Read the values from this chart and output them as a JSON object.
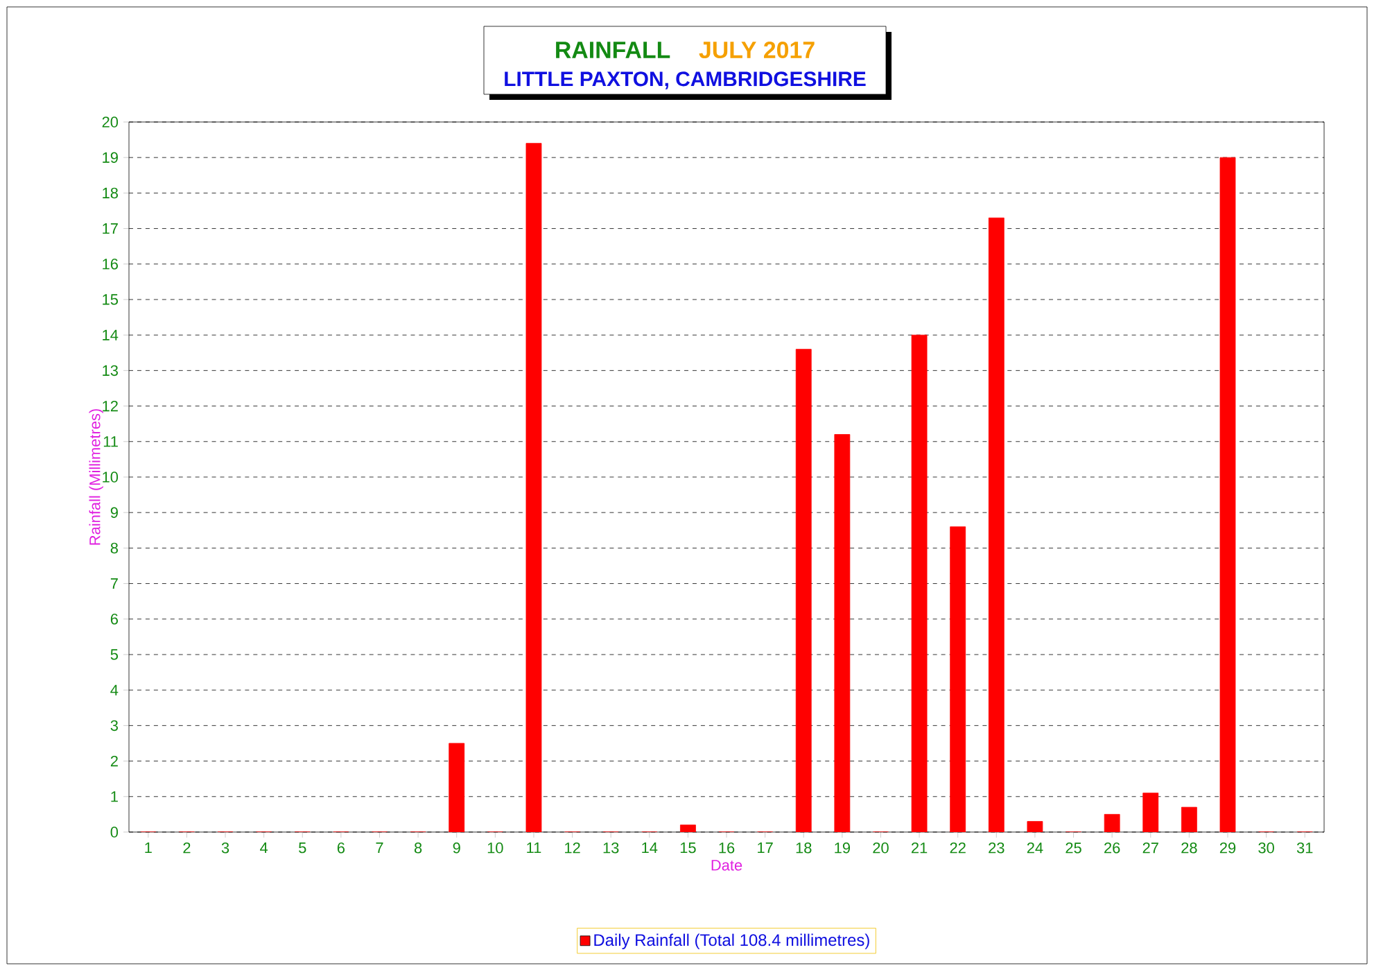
{
  "chart_data": {
    "type": "bar",
    "title": "RAINFALL",
    "subtitle": "JULY 2017",
    "annotations": [
      "LITTLE PAXTON, CAMBRIDGESHIRE"
    ],
    "xlabel": "Date",
    "ylabel": "Rainfall  (Millimetres)",
    "categories": [
      "1",
      "2",
      "3",
      "4",
      "5",
      "6",
      "7",
      "8",
      "9",
      "10",
      "11",
      "12",
      "13",
      "14",
      "15",
      "16",
      "17",
      "18",
      "19",
      "20",
      "21",
      "22",
      "23",
      "24",
      "25",
      "26",
      "27",
      "28",
      "29",
      "30",
      "31"
    ],
    "series": [
      {
        "name": "Daily Rainfall (Total 108.4 millimetres)",
        "color": "#ff0000",
        "values": [
          0,
          0,
          0,
          0,
          0,
          0,
          0,
          0,
          2.5,
          0,
          19.4,
          0,
          0,
          0,
          0.2,
          0,
          0,
          13.6,
          11.2,
          0,
          14.0,
          8.6,
          17.3,
          0.3,
          0,
          0.5,
          1.1,
          0.7,
          19.0,
          0,
          0
        ]
      }
    ],
    "ylim": [
      0,
      20
    ],
    "yticks": [
      0,
      1,
      2,
      3,
      4,
      5,
      6,
      7,
      8,
      9,
      10,
      11,
      12,
      13,
      14,
      15,
      16,
      17,
      18,
      19,
      20
    ],
    "grid": "y",
    "legend": "bottom"
  }
}
